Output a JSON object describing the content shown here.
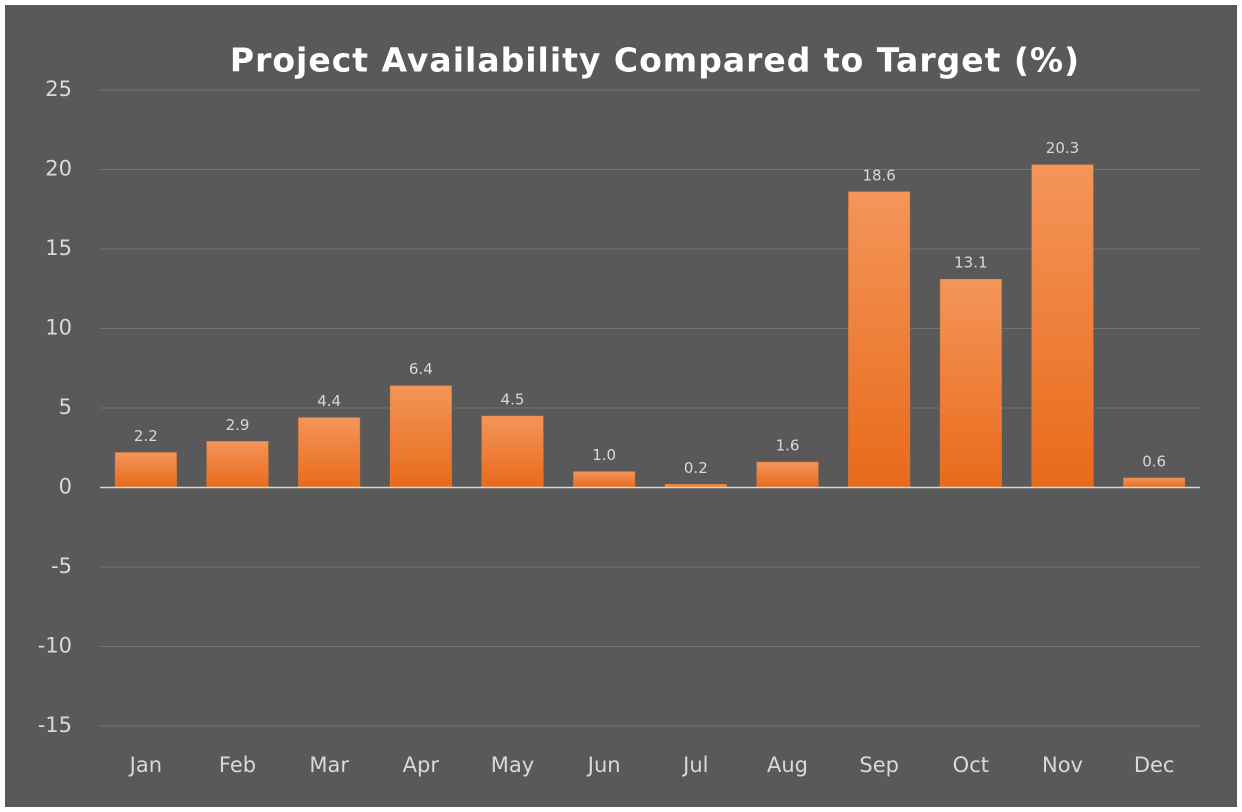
{
  "chart_data": {
    "type": "bar",
    "title": "Project Availability Compared to Target (%)",
    "categories": [
      "Jan",
      "Feb",
      "Mar",
      "Apr",
      "May",
      "Jun",
      "Jul",
      "Aug",
      "Sep",
      "Oct",
      "Nov",
      "Dec"
    ],
    "values": [
      2.2,
      2.9,
      4.4,
      6.4,
      4.5,
      1,
      0.2,
      1.6,
      18.6,
      13.1,
      20.3,
      0.6
    ],
    "value_labels": [
      "2.2",
      "2.9",
      "4.4",
      "6.4",
      "4.5",
      "1.0",
      "0.2",
      "1.6",
      "18.6",
      "13.1",
      "20.3",
      "0.6"
    ],
    "color": "#ed7d31",
    "ylim": [
      -15,
      25
    ],
    "yticks": [
      -15,
      -10,
      -5,
      0,
      5,
      10,
      15,
      20,
      25
    ],
    "grid": true
  }
}
